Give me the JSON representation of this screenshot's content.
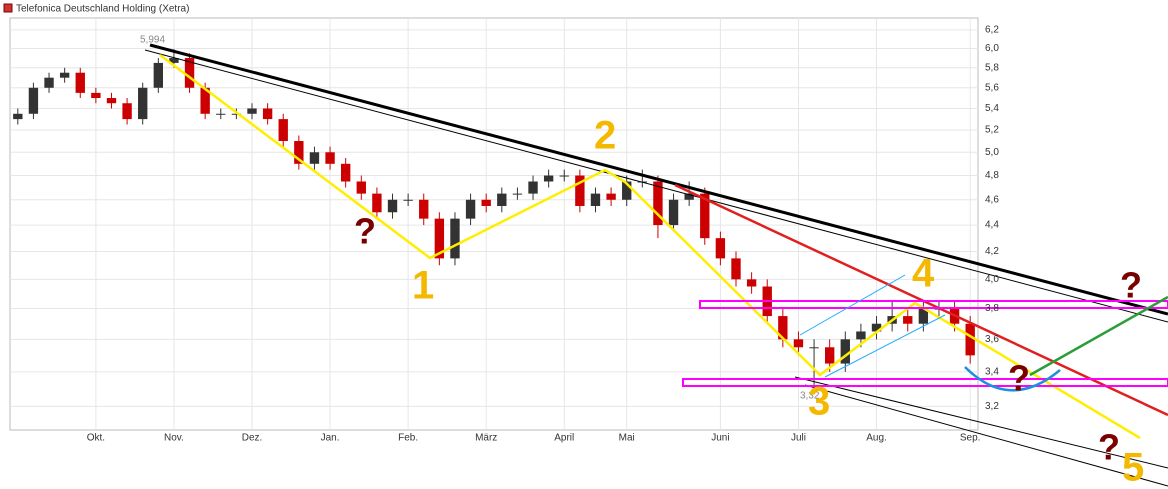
{
  "chart_data": {
    "type": "candlestick",
    "title": "Telefonica Deutschland Holding (Xetra)",
    "log_scale": true,
    "grid": true,
    "up_color": "#333333",
    "down_color": "#cc0000",
    "categories": [
      null,
      null,
      null,
      null,
      null,
      "Okt.",
      null,
      null,
      null,
      null,
      "Nov.",
      null,
      null,
      null,
      null,
      "Dez.",
      null,
      null,
      null,
      null,
      "Jan.",
      null,
      null,
      null,
      null,
      "Feb.",
      null,
      null,
      null,
      null,
      "März",
      null,
      null,
      null,
      null,
      "April",
      null,
      null,
      null,
      "Mai",
      null,
      null,
      null,
      null,
      null,
      "Juni",
      null,
      null,
      null,
      null,
      "Juli",
      null,
      null,
      null,
      null,
      "Aug.",
      null,
      null,
      null,
      null,
      null,
      "Sep."
    ],
    "open": [
      5.3,
      5.35,
      5.6,
      5.7,
      5.75,
      5.55,
      5.5,
      5.45,
      5.3,
      5.6,
      5.85,
      5.9,
      5.6,
      5.35,
      5.35,
      5.35,
      5.4,
      5.3,
      5.1,
      4.9,
      5.0,
      4.9,
      4.75,
      4.65,
      4.5,
      4.6,
      4.6,
      4.45,
      4.15,
      4.45,
      4.6,
      4.55,
      4.65,
      4.65,
      4.75,
      4.8,
      4.8,
      4.55,
      4.65,
      4.6,
      4.75,
      4.75,
      4.4,
      4.6,
      4.65,
      4.3,
      4.15,
      4.0,
      3.95,
      3.75,
      3.6,
      3.55,
      3.55,
      3.45,
      3.6,
      3.65,
      3.7,
      3.75,
      3.7,
      3.8,
      3.8,
      3.7
    ],
    "high": [
      5.4,
      5.65,
      5.75,
      5.8,
      5.8,
      5.6,
      5.55,
      5.5,
      5.65,
      5.9,
      5.994,
      5.95,
      5.65,
      5.4,
      5.4,
      5.45,
      5.45,
      5.35,
      5.15,
      5.05,
      5.05,
      4.95,
      4.8,
      4.7,
      4.65,
      4.65,
      4.65,
      4.5,
      4.5,
      4.65,
      4.65,
      4.7,
      4.7,
      4.8,
      4.85,
      4.85,
      4.85,
      4.7,
      4.7,
      4.8,
      4.85,
      4.8,
      4.65,
      4.75,
      4.7,
      4.35,
      4.2,
      4.05,
      4.0,
      3.8,
      3.65,
      3.6,
      3.6,
      3.65,
      3.7,
      3.75,
      3.85,
      3.8,
      3.85,
      3.85,
      3.85,
      3.75
    ],
    "low": [
      5.25,
      5.3,
      5.55,
      5.65,
      5.5,
      5.45,
      5.4,
      5.25,
      5.25,
      5.55,
      5.8,
      5.55,
      5.3,
      5.3,
      5.3,
      5.3,
      5.25,
      5.05,
      4.85,
      4.85,
      4.85,
      4.7,
      4.6,
      4.45,
      4.45,
      4.55,
      4.4,
      4.1,
      4.1,
      4.4,
      4.5,
      4.5,
      4.6,
      4.6,
      4.7,
      4.75,
      4.5,
      4.5,
      4.55,
      4.55,
      4.7,
      4.3,
      4.35,
      4.55,
      4.25,
      4.1,
      3.95,
      3.9,
      3.7,
      3.55,
      3.5,
      3.32,
      3.4,
      3.4,
      3.55,
      3.6,
      3.65,
      3.65,
      3.65,
      3.75,
      3.65,
      3.45
    ],
    "close": [
      5.35,
      5.6,
      5.7,
      5.75,
      5.55,
      5.5,
      5.45,
      5.3,
      5.6,
      5.85,
      5.9,
      5.6,
      5.35,
      5.35,
      5.35,
      5.4,
      5.3,
      5.1,
      4.9,
      5.0,
      4.9,
      4.75,
      4.65,
      4.5,
      4.6,
      4.6,
      4.45,
      4.15,
      4.45,
      4.6,
      4.55,
      4.65,
      4.65,
      4.75,
      4.8,
      4.8,
      4.55,
      4.65,
      4.6,
      4.75,
      4.75,
      4.4,
      4.6,
      4.65,
      4.3,
      4.15,
      4.0,
      3.95,
      3.75,
      3.6,
      3.55,
      3.55,
      3.45,
      3.6,
      3.65,
      3.7,
      3.75,
      3.7,
      3.8,
      3.8,
      3.7,
      3.5
    ],
    "ylim": [
      3.07,
      6.33
    ],
    "yticks": [
      {
        "value": 3.2,
        "label": "3,2"
      },
      {
        "value": 3.4,
        "label": "3,4"
      },
      {
        "value": 3.6,
        "label": "3,6"
      },
      {
        "value": 3.8,
        "label": "3,8"
      },
      {
        "value": 4.0,
        "label": "4,0"
      },
      {
        "value": 4.2,
        "label": "4,2"
      },
      {
        "value": 4.4,
        "label": "4,4"
      },
      {
        "value": 4.6,
        "label": "4,6"
      },
      {
        "value": 4.8,
        "label": "4,8"
      },
      {
        "value": 5.0,
        "label": "5,0"
      },
      {
        "value": 5.2,
        "label": "5,2"
      },
      {
        "value": 5.4,
        "label": "5,4"
      },
      {
        "value": 5.6,
        "label": "5,6"
      },
      {
        "value": 5.8,
        "label": "5,8"
      },
      {
        "value": 6.0,
        "label": "6,0"
      },
      {
        "value": 6.2,
        "label": "6,2"
      }
    ],
    "annotations": [
      "5,994",
      "3,32",
      "1",
      "2",
      "3",
      "4",
      "5",
      "?"
    ]
  }
}
